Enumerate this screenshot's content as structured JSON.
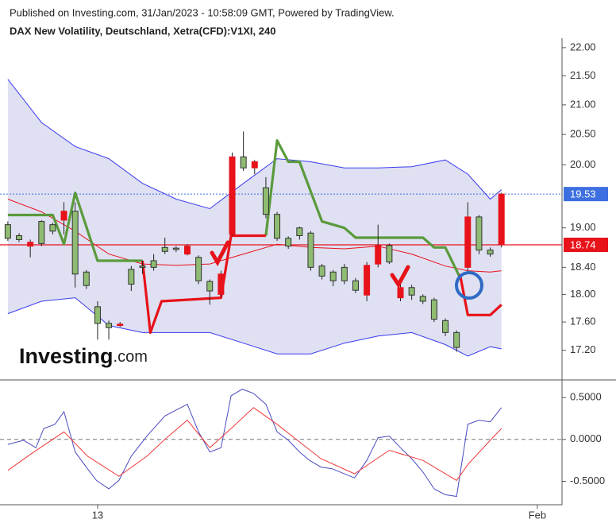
{
  "header": {
    "published": "Published on Investing.com, 31/Jan/2023 - 10:58:09 GMT, Powered by TradingView.",
    "title": "DAX New Volatility, Deutschland, Xetra(CFD):V1XI, 240"
  },
  "logo": {
    "name": "Investing",
    "suffix": ".com"
  },
  "chart_data": [
    {
      "type": "candlestick",
      "log_scale": true,
      "xlim": [
        -0.7,
        49.4
      ],
      "ylim": [
        16.79,
        22.17
      ],
      "xticks": [
        {
          "value": 8,
          "label": "13"
        },
        {
          "value": 47.2,
          "label": "Feb"
        }
      ],
      "yticks": [
        {
          "value": 22,
          "label": "22.00"
        },
        {
          "value": 21.5,
          "label": "21.50"
        },
        {
          "value": 21,
          "label": "21.00"
        },
        {
          "value": 20.5,
          "label": "20.50"
        },
        {
          "value": 20,
          "label": "20.00"
        },
        {
          "value": 19,
          "label": "19.00"
        },
        {
          "value": 18.4,
          "label": "18.40"
        },
        {
          "value": 18,
          "label": "18.00"
        },
        {
          "value": 17.6,
          "label": "17.60"
        },
        {
          "value": 17.2,
          "label": "17.20"
        }
      ],
      "up_color": "#8fbc72",
      "down_color": "#e8121a",
      "open": [
        18.84,
        18.82,
        18.78,
        18.76,
        18.95,
        19.26,
        18.3,
        18.13,
        17.58,
        17.52,
        17.57,
        18.15,
        18.4,
        18.4,
        18.64,
        18.67,
        18.72,
        18.2,
        18.05,
        18.3,
        20.13,
        19.95,
        20.05,
        19.21,
        18.84,
        18.72,
        18.88,
        18.4,
        18.27,
        18.2,
        18.2,
        18.06,
        18.43,
        18.73,
        18.48,
        18.1,
        17.99,
        17.9,
        17.64,
        17.45,
        17.24,
        19.17,
        18.66,
        18.6,
        19.53
      ],
      "high": [
        19.1,
        18.92,
        18.82,
        19.12,
        19.08,
        19.4,
        19.4,
        18.36,
        17.9,
        17.62,
        17.6,
        18.42,
        18.5,
        18.6,
        18.85,
        18.72,
        18.75,
        18.58,
        18.22,
        18.35,
        20.2,
        20.55,
        20.08,
        19.8,
        19.25,
        18.87,
        19.02,
        18.95,
        18.45,
        18.36,
        18.45,
        18.24,
        18.48,
        19.05,
        18.76,
        18.25,
        18.14,
        18.0,
        17.95,
        17.65,
        17.48,
        19.4,
        19.2,
        18.7,
        19.55
      ],
      "low": [
        18.8,
        18.78,
        18.55,
        18.72,
        18.9,
        18.9,
        18.1,
        18.08,
        17.35,
        17.35,
        17.53,
        18.05,
        18.3,
        18.35,
        18.6,
        18.63,
        18.58,
        18.15,
        17.85,
        17.97,
        18.88,
        19.9,
        19.85,
        19.15,
        18.8,
        18.68,
        18.82,
        18.35,
        18.22,
        18.12,
        18.15,
        18.02,
        17.9,
        18.4,
        18.45,
        17.9,
        17.92,
        17.86,
        17.6,
        17.4,
        17.18,
        18.35,
        18.6,
        18.56,
        18.7
      ],
      "close": [
        19.05,
        18.88,
        18.72,
        19.1,
        19.05,
        19.12,
        19.26,
        18.33,
        17.82,
        17.58,
        17.55,
        18.37,
        18.42,
        18.5,
        18.7,
        18.69,
        18.6,
        18.55,
        18.19,
        18.0,
        18.9,
        20.13,
        19.95,
        19.63,
        19.21,
        18.84,
        19.0,
        18.92,
        18.42,
        18.33,
        18.4,
        18.2,
        17.99,
        18.45,
        18.73,
        17.95,
        18.1,
        17.97,
        17.92,
        17.62,
        17.45,
        18.4,
        19.17,
        18.66,
        18.74
      ],
      "bands": {
        "x": [
          0,
          3,
          6,
          9,
          12,
          15,
          18,
          21,
          24,
          27,
          30,
          33,
          36,
          39,
          41,
          43,
          44
        ],
        "fill": "#dfe0f2",
        "line_color": "#3b3bf0",
        "mid_color": "#e8121a",
        "upper": [
          21.44,
          20.7,
          20.3,
          20.1,
          19.7,
          19.45,
          19.3,
          19.7,
          20.1,
          20.05,
          19.95,
          19.95,
          19.97,
          20.08,
          19.85,
          19.45,
          19.6
        ],
        "middle": [
          19.45,
          19.25,
          18.95,
          18.6,
          18.45,
          18.43,
          18.45,
          18.6,
          18.75,
          18.7,
          18.68,
          18.72,
          18.6,
          18.42,
          18.35,
          18.33,
          18.35
        ],
        "lower": [
          17.72,
          17.9,
          17.95,
          17.55,
          17.45,
          17.45,
          17.45,
          17.3,
          17.15,
          17.15,
          17.3,
          17.4,
          17.45,
          17.28,
          17.12,
          17.25,
          17.22
        ]
      },
      "trend": {
        "x": [
          0,
          4,
          5,
          6,
          8,
          12,
          12.7,
          13.7,
          19,
          19.9,
          23,
          24,
          25,
          26,
          28,
          30,
          31,
          37,
          38,
          39,
          40.3,
          41,
          43,
          44
        ],
        "series": [
          {
            "color": "#5a9a3c",
            "values": [
              19.2,
              19.2,
              18.75,
              19.55,
              18.5,
              18.5,
              null,
              null,
              null,
              null,
              18.88,
              20.4,
              20.05,
              20.05,
              19.1,
              19.0,
              18.85,
              18.85,
              18.7,
              18.7,
              18.25,
              null,
              null,
              null
            ]
          },
          {
            "color": "#e8121a",
            "values": [
              null,
              null,
              null,
              null,
              null,
              18.5,
              17.45,
              17.9,
              17.95,
              18.88,
              18.88,
              null,
              null,
              null,
              null,
              null,
              null,
              null,
              null,
              null,
              18.3,
              17.7,
              17.7,
              17.85
            ]
          }
        ]
      },
      "price_lines": [
        {
          "value": 19.53,
          "color": "#3d6fe0",
          "dotted": true
        },
        {
          "value": 18.74,
          "color": "#e8121a",
          "dotted": false
        }
      ]
    },
    {
      "type": "line",
      "xlim": [
        -0.7,
        49.4
      ],
      "ylim": [
        -0.78,
        0.71
      ],
      "yticks": [
        {
          "value": 0.5,
          "label": "0.5000"
        },
        {
          "value": 0,
          "label": "0.0000"
        },
        {
          "value": -0.5,
          "label": "-0.5000"
        }
      ],
      "zero_line": true,
      "series": [
        {
          "color": "#4a4ac0",
          "x": [
            0,
            1.4,
            2.5,
            3.2,
            4.2,
            5,
            6,
            7.1,
            7.9,
            9,
            9.9,
            11,
            12.4,
            14,
            16,
            17,
            18,
            19,
            19.9,
            20.9,
            21.9,
            23,
            24,
            25,
            26,
            26.9,
            27.9,
            28.9,
            30.9,
            32,
            33,
            34,
            35,
            36,
            37,
            38,
            39,
            40,
            41,
            42,
            43,
            44
          ],
          "values": [
            -0.06,
            -0.01,
            -0.1,
            0.13,
            0.18,
            0.33,
            -0.15,
            -0.35,
            -0.49,
            -0.59,
            -0.49,
            -0.2,
            0.04,
            0.28,
            0.42,
            0.09,
            -0.15,
            -0.1,
            0.52,
            0.6,
            0.55,
            0.42,
            0.09,
            -0.01,
            -0.15,
            -0.25,
            -0.33,
            -0.35,
            -0.46,
            -0.25,
            0.02,
            0.04,
            -0.1,
            -0.23,
            -0.39,
            -0.59,
            -0.66,
            -0.68,
            0.18,
            0.23,
            0.21,
            0.38
          ]
        },
        {
          "color": "#f03a3a",
          "x": [
            0,
            2.1,
            5,
            7.1,
            9.9,
            12.4,
            14,
            16,
            18,
            19.9,
            21.9,
            24,
            26,
            27.9,
            30.9,
            34,
            37,
            40,
            41,
            43,
            44
          ],
          "values": [
            -0.37,
            -0.17,
            0.09,
            -0.2,
            -0.44,
            -0.2,
            0.0,
            0.23,
            -0.1,
            0.13,
            0.38,
            0.18,
            -0.03,
            -0.23,
            -0.41,
            -0.13,
            -0.25,
            -0.49,
            -0.3,
            -0.01,
            0.13
          ]
        }
      ]
    }
  ]
}
